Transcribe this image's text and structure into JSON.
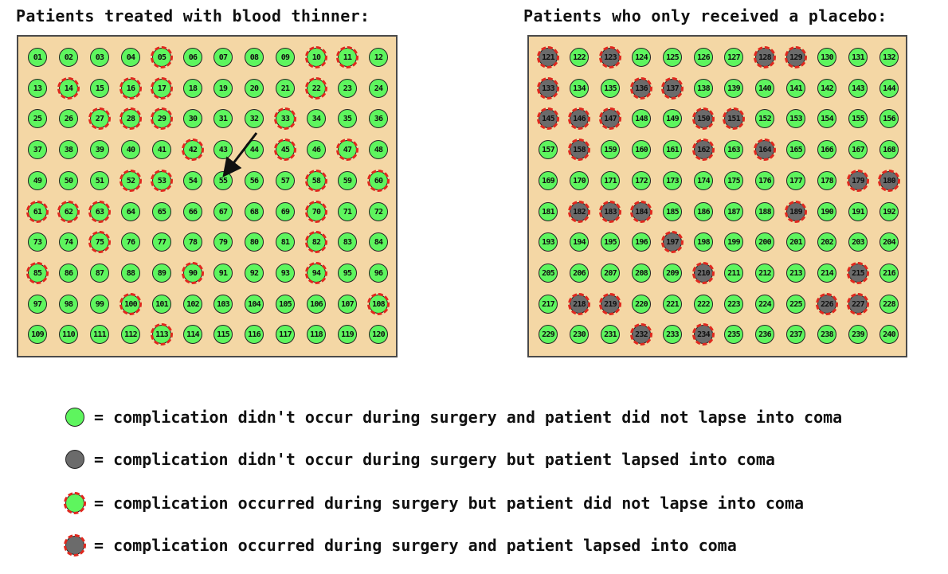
{
  "titles": {
    "left": "Patients treated with blood thinner:",
    "right": "Patients who only received a placebo:"
  },
  "colors": {
    "no_coma": "#5ef55e",
    "coma": "#6b6b6b",
    "complication_ring": "#e0281e",
    "panel_background": "#f4d7a5"
  },
  "groups": {
    "blood_thinner": {
      "first": 1,
      "last": 120,
      "pad_two_digits": true,
      "coma_patients": [],
      "complication_patients": [
        5,
        10,
        11,
        14,
        16,
        17,
        22,
        27,
        28,
        29,
        33,
        42,
        45,
        47,
        52,
        53,
        58,
        60,
        61,
        62,
        63,
        70,
        75,
        82,
        85,
        90,
        94,
        100,
        108,
        113
      ]
    },
    "placebo": {
      "first": 121,
      "last": 240,
      "pad_two_digits": false,
      "coma_patients": [
        121,
        123,
        128,
        129,
        133,
        136,
        137,
        145,
        146,
        147,
        150,
        151,
        158,
        162,
        164,
        179,
        180,
        182,
        183,
        184,
        189,
        197,
        210,
        215,
        218,
        219,
        226,
        227,
        232,
        234
      ],
      "complication_patients": [
        121,
        123,
        128,
        129,
        133,
        136,
        137,
        145,
        146,
        147,
        150,
        151,
        158,
        162,
        164,
        179,
        180,
        182,
        183,
        184,
        189,
        197,
        210,
        215,
        218,
        219,
        226,
        227,
        232,
        234
      ]
    }
  },
  "annotation": {
    "arrow_points_to_patient": 55
  },
  "legend": [
    {
      "icon": "green-circle-icon",
      "text": "= complication didn't occur during surgery and patient did not lapse into coma"
    },
    {
      "icon": "gray-circle-icon",
      "text": "= complication didn't occur during surgery but patient lapsed into coma"
    },
    {
      "icon": "green-circle-dashed-red-ring-icon",
      "text": "= complication occurred during surgery but patient did not lapse into coma"
    },
    {
      "icon": "gray-circle-dashed-red-ring-icon",
      "text": "= complication occurred during surgery and patient lapsed into coma"
    }
  ]
}
